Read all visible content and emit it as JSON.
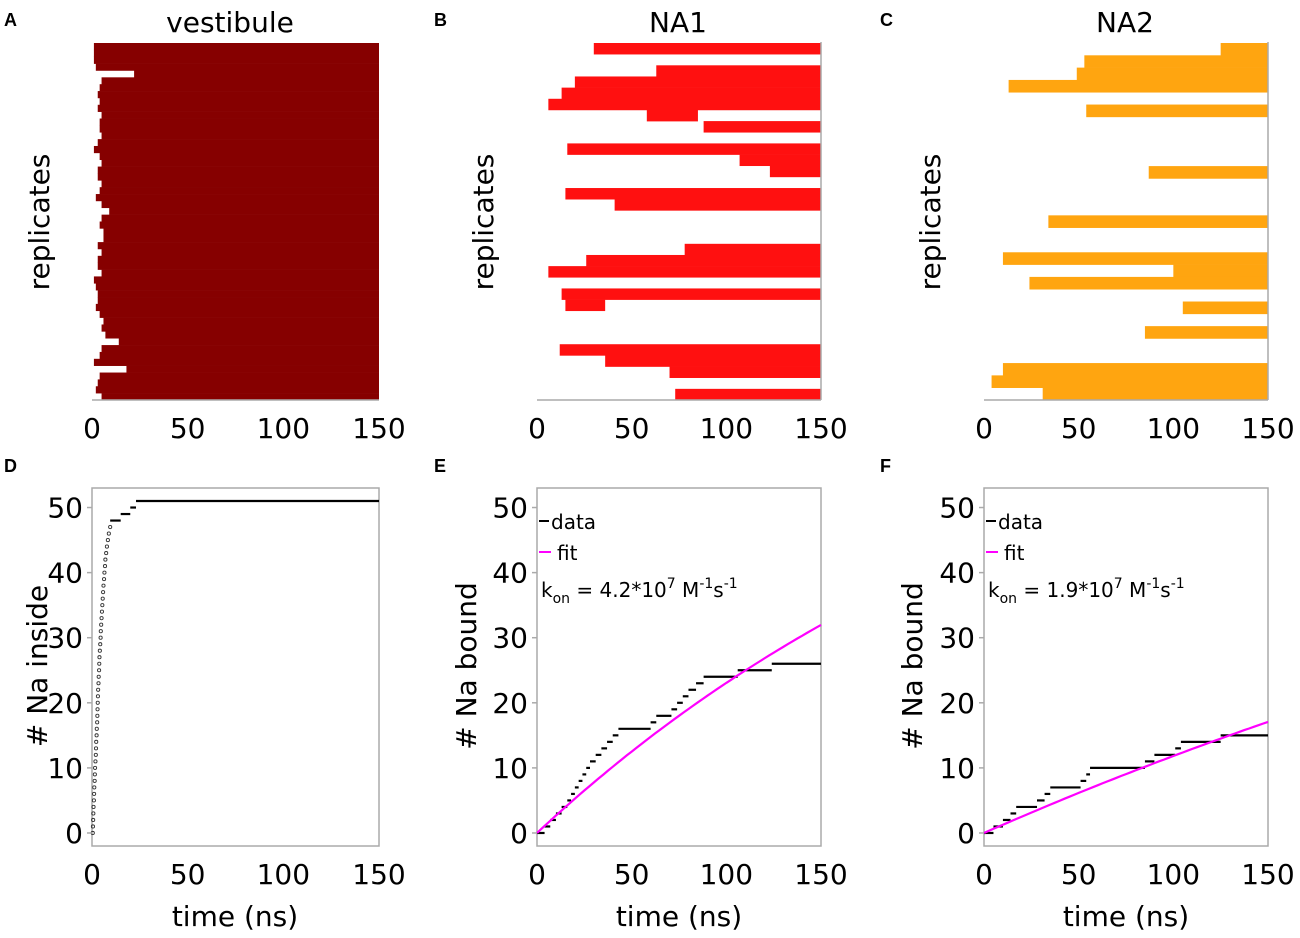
{
  "colors": {
    "vestibule": "#860000",
    "na1": "#ff1010",
    "na2": "#ffa510",
    "data": "#000000",
    "fit": "#ff00ff",
    "axis": "#aaaaaa"
  },
  "chart_data": [
    {
      "panel": "A",
      "type": "bar",
      "title": "vestibule",
      "ylabel": "replicates",
      "xticks": [
        "0",
        "50",
        "100",
        "150"
      ],
      "xlim": [
        0,
        150
      ],
      "bars": [
        [
          1,
          150
        ],
        [
          1,
          150
        ],
        [
          1,
          150
        ],
        [
          2,
          150
        ],
        [
          22,
          150
        ],
        [
          5,
          150
        ],
        [
          4,
          150
        ],
        [
          3,
          150
        ],
        [
          4,
          150
        ],
        [
          3,
          150
        ],
        [
          5,
          150
        ],
        [
          4,
          150
        ],
        [
          4,
          150
        ],
        [
          5,
          150
        ],
        [
          3,
          150
        ],
        [
          1,
          150
        ],
        [
          4,
          150
        ],
        [
          5,
          150
        ],
        [
          3,
          150
        ],
        [
          3,
          150
        ],
        [
          5,
          150
        ],
        [
          4,
          150
        ],
        [
          2,
          150
        ],
        [
          5,
          150
        ],
        [
          9,
          150
        ],
        [
          5,
          150
        ],
        [
          4,
          150
        ],
        [
          6,
          150
        ],
        [
          6,
          150
        ],
        [
          3,
          150
        ],
        [
          5,
          150
        ],
        [
          3,
          150
        ],
        [
          3,
          150
        ],
        [
          5,
          150
        ],
        [
          1,
          150
        ],
        [
          2,
          150
        ],
        [
          3,
          150
        ],
        [
          3,
          150
        ],
        [
          2,
          150
        ],
        [
          4,
          150
        ],
        [
          6,
          150
        ],
        [
          5,
          150
        ],
        [
          7,
          150
        ],
        [
          14,
          150
        ],
        [
          5,
          150
        ],
        [
          4,
          150
        ],
        [
          1,
          150
        ],
        [
          18,
          150
        ],
        [
          4,
          150
        ],
        [
          3,
          150
        ],
        [
          2,
          150
        ],
        [
          5,
          150
        ]
      ]
    },
    {
      "panel": "B",
      "type": "bar",
      "title": "NA1",
      "ylabel": "replicates",
      "xticks": [
        "0",
        "50",
        "100",
        "150"
      ],
      "xlim": [
        0,
        150
      ],
      "bars": [
        [
          30,
          150
        ],
        null,
        [
          63,
          150
        ],
        [
          20,
          150
        ],
        [
          13,
          150
        ],
        [
          6,
          150
        ],
        [
          58,
          85
        ],
        [
          88,
          150
        ],
        null,
        [
          16,
          150
        ],
        [
          107,
          150
        ],
        [
          123,
          150
        ],
        null,
        [
          15,
          150
        ],
        [
          41,
          150
        ],
        null,
        null,
        null,
        [
          78,
          150
        ],
        [
          26,
          150
        ],
        [
          6,
          150
        ],
        null,
        [
          13,
          150
        ],
        [
          15,
          36
        ],
        null,
        null,
        null,
        [
          12,
          150
        ],
        [
          36,
          150
        ],
        [
          70,
          150
        ],
        null,
        [
          73,
          150
        ]
      ]
    },
    {
      "panel": "C",
      "type": "bar",
      "title": "NA2",
      "ylabel": "replicates",
      "xticks": [
        "0",
        "50",
        "100",
        "150"
      ],
      "xlim": [
        0,
        150
      ],
      "bars": [
        [
          125,
          150
        ],
        [
          53,
          150
        ],
        [
          49,
          150
        ],
        [
          13,
          150
        ],
        null,
        [
          54,
          150
        ],
        null,
        null,
        null,
        null,
        [
          87,
          150
        ],
        null,
        null,
        null,
        [
          34,
          150
        ],
        null,
        null,
        [
          10,
          150
        ],
        [
          100,
          150
        ],
        [
          24,
          150
        ],
        null,
        [
          105,
          150
        ],
        null,
        [
          85,
          150
        ],
        null,
        null,
        [
          10,
          150
        ],
        [
          4,
          150
        ],
        [
          31,
          150
        ]
      ]
    },
    {
      "panel": "D",
      "type": "scatter",
      "xlabel": "time (ns)",
      "ylabel": "# Na inside",
      "xticks": [
        "0",
        "50",
        "100",
        "150"
      ],
      "yticks": [
        "0",
        "10",
        "20",
        "30",
        "40",
        "50"
      ],
      "xlim": [
        0,
        150
      ],
      "ylim": [
        -2,
        53
      ],
      "points": [
        [
          0.4,
          0
        ],
        [
          0.5,
          1
        ],
        [
          0.6,
          2
        ],
        [
          0.7,
          3
        ],
        [
          0.8,
          4
        ],
        [
          1.0,
          5
        ],
        [
          1.1,
          6
        ],
        [
          1.2,
          7
        ],
        [
          1.4,
          8
        ],
        [
          1.5,
          9
        ],
        [
          1.6,
          10
        ],
        [
          1.8,
          11
        ],
        [
          2.0,
          12
        ],
        [
          2.1,
          13
        ],
        [
          2.2,
          14
        ],
        [
          2.4,
          15
        ],
        [
          2.5,
          16
        ],
        [
          2.7,
          17
        ],
        [
          2.8,
          18
        ],
        [
          2.9,
          19
        ],
        [
          3.0,
          20
        ],
        [
          3.1,
          21
        ],
        [
          3.2,
          22
        ],
        [
          3.4,
          23
        ],
        [
          3.5,
          24
        ],
        [
          3.7,
          25
        ],
        [
          3.8,
          26
        ],
        [
          3.9,
          27
        ],
        [
          4.1,
          28
        ],
        [
          4.3,
          29
        ],
        [
          4.5,
          30
        ],
        [
          4.6,
          31
        ],
        [
          4.8,
          32
        ],
        [
          5.0,
          33
        ],
        [
          5.2,
          34
        ],
        [
          5.4,
          35
        ],
        [
          5.6,
          36
        ],
        [
          5.8,
          37
        ],
        [
          6.0,
          38
        ],
        [
          6.3,
          39
        ],
        [
          6.5,
          40
        ],
        [
          6.8,
          41
        ],
        [
          7.0,
          42
        ],
        [
          7.4,
          43
        ],
        [
          7.8,
          44
        ],
        [
          8.3,
          45
        ],
        [
          8.8,
          46
        ],
        [
          9.5,
          47
        ]
      ],
      "steps": [
        [
          9.5,
          15,
          48
        ],
        [
          15,
          20,
          49
        ],
        [
          20,
          23,
          50
        ],
        [
          23,
          150,
          51
        ]
      ]
    },
    {
      "panel": "E",
      "type": "line",
      "xlabel": "time (ns)",
      "ylabel": "# Na bound",
      "xticks": [
        "0",
        "50",
        "100",
        "150"
      ],
      "yticks": [
        "0",
        "10",
        "20",
        "30",
        "40",
        "50"
      ],
      "xlim": [
        0,
        150
      ],
      "ylim": [
        -2,
        53
      ],
      "legend_data": "data",
      "legend_fit": "fit",
      "kon_prefix": "k",
      "kon_sub": "on",
      "kon_main": " = 4.2*10",
      "kon_exp": "7",
      "kon_unit1": " M",
      "kon_exp1": "-1",
      "kon_unit2": "s",
      "kon_exp2": "-1",
      "steps": [
        [
          0,
          4,
          0
        ],
        [
          4,
          7,
          1
        ],
        [
          7,
          10,
          2
        ],
        [
          10,
          13,
          3
        ],
        [
          13,
          16,
          4
        ],
        [
          16,
          18,
          5
        ],
        [
          18,
          20,
          6
        ],
        [
          20,
          22,
          7
        ],
        [
          22,
          24,
          8
        ],
        [
          24,
          26,
          9
        ],
        [
          26,
          28,
          10
        ],
        [
          28,
          31,
          11
        ],
        [
          31,
          34,
          12
        ],
        [
          34,
          37,
          13
        ],
        [
          37,
          40,
          14
        ],
        [
          40,
          43,
          15
        ],
        [
          43,
          60,
          16
        ],
        [
          60,
          63,
          17
        ],
        [
          63,
          71,
          18
        ],
        [
          71,
          74,
          19
        ],
        [
          74,
          77,
          20
        ],
        [
          77,
          80,
          21
        ],
        [
          80,
          84,
          22
        ],
        [
          84,
          88,
          23
        ],
        [
          88,
          106,
          24
        ],
        [
          106,
          124,
          25
        ],
        [
          124,
          150,
          26
        ]
      ],
      "fit": {
        "N": 80,
        "k": 0.0034
      }
    },
    {
      "panel": "F",
      "type": "line",
      "xlabel": "time (ns)",
      "ylabel": "# Na bound",
      "xticks": [
        "0",
        "50",
        "100",
        "150"
      ],
      "yticks": [
        "0",
        "10",
        "20",
        "30",
        "40",
        "50"
      ],
      "xlim": [
        0,
        150
      ],
      "ylim": [
        -2,
        53
      ],
      "legend_data": "data",
      "legend_fit": "fit",
      "kon_prefix": "k",
      "kon_sub": "on",
      "kon_main": " = 1.9*10",
      "kon_exp": "7",
      "kon_unit1": " M",
      "kon_exp1": "-1",
      "kon_unit2": "s",
      "kon_exp2": "-1",
      "steps": [
        [
          0,
          5,
          0
        ],
        [
          5,
          10,
          1
        ],
        [
          10,
          14,
          2
        ],
        [
          14,
          17,
          3
        ],
        [
          17,
          28,
          4
        ],
        [
          28,
          32,
          5
        ],
        [
          32,
          35,
          6
        ],
        [
          35,
          51,
          7
        ],
        [
          51,
          54,
          8
        ],
        [
          54,
          56,
          9
        ],
        [
          56,
          85,
          10
        ],
        [
          85,
          90,
          11
        ],
        [
          90,
          101,
          12
        ],
        [
          101,
          104,
          13
        ],
        [
          104,
          125,
          14
        ],
        [
          125,
          150,
          15
        ]
      ],
      "fit": {
        "N": 80,
        "k": 0.0016
      }
    }
  ],
  "panel_labels": [
    "A",
    "B",
    "C",
    "D",
    "E",
    "F"
  ]
}
